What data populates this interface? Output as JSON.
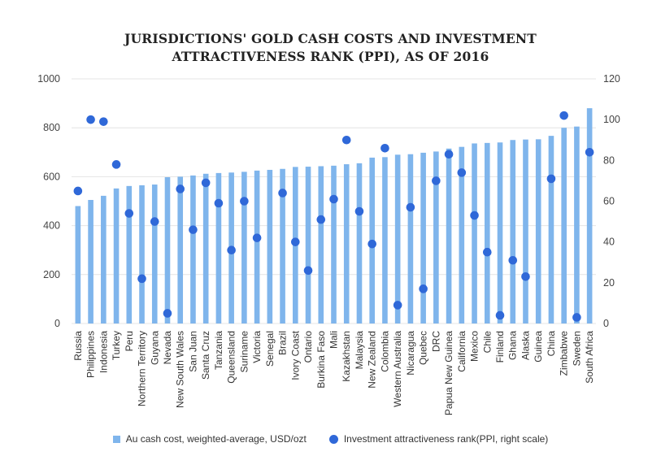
{
  "chart_data": {
    "type": "bar",
    "title_lines": [
      "JURISDICTIONS' GOLD CASH COSTS AND INVESTMENT",
      "ATTRACTIVENESS RANK (PPI), AS OF 2016"
    ],
    "categories": [
      "Russia",
      "Philippines",
      "Indonesia",
      "Turkey",
      "Peru",
      "Northern Territory",
      "Guyana",
      "Nevada",
      "New South Wales",
      "San Juan",
      "Santa Cruz",
      "Tanzania",
      "Queensland",
      "Suriname",
      "Victoria",
      "Senegal",
      "Brazil",
      "Ivory Coast",
      "Ontario",
      "Burkina Faso",
      "Mali",
      "Kazakhstan",
      "Malaysia",
      "New Zealand",
      "Colombia",
      "Western Australia",
      "Nicaragua",
      "Quebec",
      "DRC",
      "Papua New Guinea",
      "California",
      "Mexico",
      "Chile",
      "Finland",
      "Ghana",
      "Alaska",
      "Guinea",
      "China",
      "Zimbabwe",
      "Sweden",
      "South Africa"
    ],
    "series": [
      {
        "name": "Au cash cost, weighted-average, USD/ozt",
        "type": "bar",
        "axis": "left",
        "color": "#7fb5ec",
        "values": [
          480,
          505,
          522,
          552,
          562,
          565,
          568,
          598,
          600,
          605,
          612,
          615,
          617,
          620,
          625,
          628,
          632,
          640,
          641,
          643,
          645,
          651,
          655,
          678,
          680,
          690,
          692,
          698,
          703,
          715,
          722,
          736,
          738,
          740,
          750,
          752,
          753,
          767,
          800,
          805,
          880
        ]
      },
      {
        "name": "Investment attractiveness rank(PPI, right scale)",
        "type": "scatter",
        "axis": "right",
        "color": "#2f68d8",
        "values": [
          65,
          100,
          99,
          78,
          54,
          22,
          50,
          5,
          66,
          46,
          69,
          59,
          36,
          60,
          42,
          null,
          64,
          40,
          26,
          51,
          61,
          90,
          55,
          39,
          86,
          9,
          57,
          17,
          70,
          83,
          74,
          53,
          35,
          4,
          31,
          23,
          null,
          71,
          102,
          3,
          84
        ]
      }
    ],
    "y_left": {
      "lim": [
        0,
        1000
      ],
      "ticks": [
        "0",
        "200",
        "400",
        "600",
        "800",
        "1000"
      ]
    },
    "y_right": {
      "lim": [
        0,
        120
      ],
      "ticks": [
        "0",
        "20",
        "40",
        "60",
        "80",
        "100",
        "120"
      ]
    },
    "grid": true,
    "legend": "bottom"
  }
}
